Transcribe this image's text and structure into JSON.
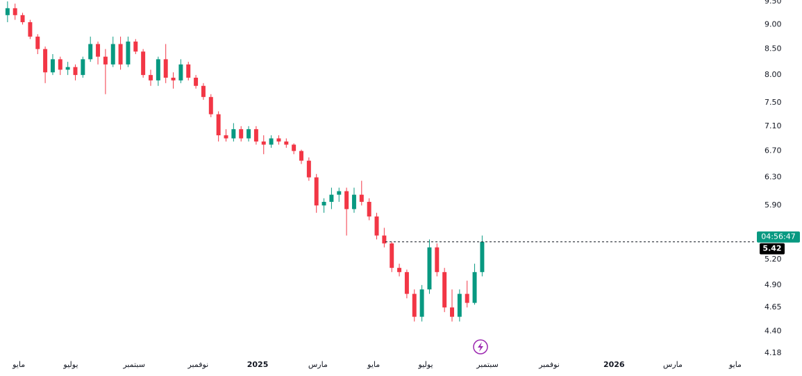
{
  "chart_data": {
    "type": "candlestick",
    "up_color": "#089981",
    "down_color": "#f23645",
    "log_scale": true,
    "ylim": [
      4.18,
      9.5
    ],
    "yticks": [
      {
        "value": 9.5,
        "label": "9.50"
      },
      {
        "value": 9,
        "label": "9.00"
      },
      {
        "value": 8.5,
        "label": "8.50"
      },
      {
        "value": 8,
        "label": "8.00"
      },
      {
        "value": 7.5,
        "label": "7.50"
      },
      {
        "value": 7.1,
        "label": "7.10"
      },
      {
        "value": 6.7,
        "label": "6.70"
      },
      {
        "value": 6.3,
        "label": "6.30"
      },
      {
        "value": 5.9,
        "label": "5.90"
      },
      {
        "value": 5.2,
        "label": "5.20"
      },
      {
        "value": 4.9,
        "label": "4.90"
      },
      {
        "value": 4.65,
        "label": "4.65"
      },
      {
        "value": 4.4,
        "label": "4.40"
      },
      {
        "value": 4.18,
        "label": "4.18"
      }
    ],
    "xlim": [
      -1,
      99
    ],
    "xticks": [
      {
        "value": 1.5,
        "label": "مايو"
      },
      {
        "value": 8.4,
        "label": "يوليو"
      },
      {
        "value": 16.8,
        "label": "سبتمبر"
      },
      {
        "value": 25.3,
        "label": "نوفمبر"
      },
      {
        "value": 33.2,
        "label": "2025"
      },
      {
        "value": 41.2,
        "label": "مارس"
      },
      {
        "value": 48.6,
        "label": "مايو"
      },
      {
        "value": 55.5,
        "label": "يوليو"
      },
      {
        "value": 63.7,
        "label": "سبتمبر"
      },
      {
        "value": 71.9,
        "label": "نوفمبر"
      },
      {
        "value": 80.5,
        "label": "2026"
      },
      {
        "value": 88.3,
        "label": "مارس"
      },
      {
        "value": 96.6,
        "label": "مايو"
      }
    ],
    "open": [
      9.2,
      9.35,
      9.2,
      9.05,
      8.75,
      8.5,
      8.05,
      8.3,
      8.1,
      8.15,
      8.0,
      8.3,
      8.6,
      8.35,
      8.2,
      8.6,
      8.2,
      8.65,
      8.45,
      8.0,
      7.9,
      8.3,
      7.95,
      7.9,
      8.2,
      7.95,
      7.8,
      7.6,
      7.3,
      6.95,
      6.9,
      7.05,
      6.9,
      7.05,
      6.85,
      6.8,
      6.9,
      6.85,
      6.8,
      6.7,
      6.55,
      6.3,
      5.9,
      5.95,
      6.05,
      6.1,
      5.85,
      6.05,
      5.95,
      5.75,
      5.5,
      5.4,
      5.1,
      5.05,
      4.8,
      4.55,
      4.85,
      5.35,
      5.05,
      4.65,
      4.55,
      4.8,
      4.7,
      5.05
    ],
    "high": [
      9.5,
      9.45,
      9.25,
      9.1,
      8.8,
      8.55,
      8.4,
      8.35,
      8.25,
      8.2,
      8.35,
      8.75,
      8.65,
      8.5,
      8.75,
      8.75,
      8.75,
      8.7,
      8.5,
      8.1,
      8.35,
      8.6,
      8.05,
      8.3,
      8.25,
      8.0,
      7.85,
      7.65,
      7.35,
      7.05,
      7.15,
      7.1,
      7.1,
      7.1,
      6.95,
      6.95,
      6.95,
      6.9,
      6.82,
      6.72,
      6.6,
      6.35,
      6.0,
      6.15,
      6.15,
      6.15,
      6.15,
      6.25,
      6.0,
      5.8,
      5.6,
      5.42,
      5.15,
      5.08,
      4.85,
      4.9,
      5.45,
      5.4,
      5.1,
      4.85,
      4.85,
      4.95,
      5.15,
      5.5
    ],
    "low": [
      9.05,
      9.1,
      9.0,
      8.7,
      8.4,
      7.85,
      8.0,
      8.0,
      8.0,
      7.9,
      7.95,
      8.25,
      8.2,
      7.65,
      8.15,
      8.1,
      8.15,
      8.4,
      7.95,
      7.8,
      7.8,
      7.85,
      7.75,
      7.85,
      7.9,
      7.75,
      7.55,
      7.25,
      6.85,
      6.85,
      6.85,
      6.85,
      6.85,
      6.8,
      6.65,
      6.75,
      6.8,
      6.75,
      6.65,
      6.5,
      6.25,
      5.8,
      5.8,
      5.85,
      5.95,
      5.5,
      5.8,
      5.9,
      5.7,
      5.45,
      5.35,
      5.05,
      5.0,
      4.75,
      4.5,
      4.5,
      4.8,
      5.0,
      4.6,
      4.5,
      4.5,
      4.65,
      4.68,
      5.0
    ],
    "close": [
      9.35,
      9.2,
      9.05,
      8.75,
      8.5,
      8.05,
      8.3,
      8.1,
      8.15,
      8.0,
      8.3,
      8.6,
      8.35,
      8.2,
      8.6,
      8.2,
      8.65,
      8.45,
      8.0,
      7.9,
      8.3,
      7.95,
      7.9,
      8.2,
      7.95,
      7.8,
      7.6,
      7.3,
      6.95,
      6.9,
      7.05,
      6.9,
      7.05,
      6.85,
      6.8,
      6.9,
      6.85,
      6.8,
      6.7,
      6.55,
      6.3,
      5.9,
      5.95,
      6.05,
      6.1,
      5.85,
      6.05,
      5.95,
      5.75,
      5.5,
      5.4,
      5.1,
      5.05,
      4.8,
      4.55,
      4.85,
      5.35,
      5.05,
      4.65,
      4.55,
      4.8,
      4.7,
      5.05,
      5.42
    ],
    "last_price": 5.42,
    "countdown": "04:56:47"
  }
}
